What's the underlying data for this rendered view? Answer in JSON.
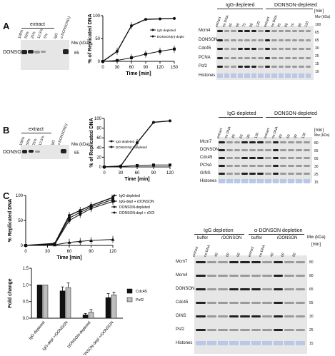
{
  "panels": {
    "A": {
      "letter": "A",
      "extract_label": "extract",
      "extract_lanes": [
        "100%",
        "50%",
        "25%",
        "12.5%",
        "5%"
      ],
      "ip_lanes": [
        "IgG",
        "α-DONSON(n)"
      ],
      "mw_label": "Mw (kDa)",
      "mw_marker": "65",
      "blot_label": "DONSON",
      "right_groups": [
        "IgG-depleted",
        "DONSON-depleted"
      ],
      "right_lanes": [
        "extract",
        "no DNA",
        "45",
        "60",
        "75",
        "90",
        "120"
      ],
      "right_lanes2": [
        "extract",
        "no DNA",
        "45",
        "60",
        "75",
        "90",
        "120"
      ],
      "time_unit": "[min]",
      "right_rows": [
        "Mcm4",
        "DONSON",
        "Cdc45",
        "PCNA",
        "Psf2",
        "Histones"
      ],
      "right_mw": [
        "Mw (kDa)",
        "100",
        "65",
        "65",
        "30",
        "25",
        "15",
        "10"
      ]
    },
    "B": {
      "letter": "B",
      "extract_label": "extract",
      "extract_lanes": [
        "100%",
        "50%",
        "25%",
        "12.5%"
      ],
      "ip_lanes": [
        "IgG",
        "α-DONSON(c)"
      ],
      "mw_label": "Mw (kDa)",
      "mw_marker": "65",
      "blot_label": "DONSON",
      "right_groups": [
        "IgG-depleted",
        "DONSON-depleted"
      ],
      "right_lanes": [
        "extract",
        "no DNA",
        "40",
        "60",
        "90",
        "120"
      ],
      "right_lanes2": [
        "extract",
        "no DNA",
        "40",
        "60",
        "90",
        "120"
      ],
      "time_unit": "[min]",
      "right_rows": [
        "Mcm7",
        "DONSON",
        "Cdc45",
        "PCNA",
        "GINS",
        "Histones"
      ],
      "right_mw": [
        "Mw (kDa)",
        "80",
        "65",
        "65",
        "30",
        "25",
        "15"
      ]
    },
    "C": {
      "letter": "C",
      "right_groups": [
        "IgG depletion",
        "α-DONSON depletion"
      ],
      "sub_groups": [
        "buffer",
        "rDONSON",
        "buffer",
        "rDONSON"
      ],
      "right_lanes": [
        "extract",
        "no DNA",
        "40",
        "60",
        "90",
        "extract",
        "no DNA",
        "40",
        "60",
        "90"
      ],
      "time_unit": "[min]",
      "mw_label": "Mw (kDa)",
      "right_rows": [
        "Mcm7",
        "Mcm4",
        "DONSON",
        "Cdc45",
        "GINS",
        "Psf2",
        "Histones"
      ],
      "right_mw": [
        "80",
        "80",
        "65",
        "55",
        "30",
        "25",
        "15"
      ]
    }
  },
  "chart_data": [
    {
      "type": "line",
      "panel": "A",
      "x": [
        0,
        30,
        60,
        90,
        120,
        150
      ],
      "series": [
        {
          "name": "IgG-depleted",
          "values": [
            0,
            22,
            78,
            92,
            93,
            94
          ]
        },
        {
          "name": "DONSON(n)-depleted",
          "values": [
            0,
            2,
            8,
            16,
            22,
            27
          ]
        }
      ],
      "xlabel": "Time [min]",
      "ylabel": "% of Replicated DNA",
      "xticks": [
        "0",
        "30",
        "60",
        "90",
        "120",
        "150"
      ],
      "yticks": [
        "0",
        "50",
        "100"
      ],
      "xlim": [
        0,
        150
      ],
      "ylim": [
        0,
        100
      ]
    },
    {
      "type": "line",
      "panel": "B",
      "x": [
        0,
        30,
        60,
        90,
        120
      ],
      "series": [
        {
          "name": "IgG-depleted",
          "values": [
            0,
            2,
            50,
            92,
            95
          ]
        },
        {
          "name": "DONSON(c)-depleted",
          "values": [
            0,
            1,
            3,
            4,
            4
          ]
        }
      ],
      "xlabel": "Time [min]",
      "ylabel": "% of Replicated DNA",
      "xticks": [
        "0",
        "30",
        "60",
        "90",
        "120"
      ],
      "yticks": [
        "0",
        "20",
        "40",
        "60",
        "80",
        "100"
      ],
      "xlim": [
        0,
        120
      ],
      "ylim": [
        0,
        100
      ]
    },
    {
      "type": "line",
      "panel": "C",
      "x": [
        0,
        40,
        60,
        75,
        90,
        120
      ],
      "series": [
        {
          "name": "IgG-depleted",
          "values": [
            0,
            4,
            60,
            70,
            80,
            96
          ]
        },
        {
          "name": "IgG-depl + rDONSON",
          "values": [
            0,
            3,
            55,
            66,
            77,
            92
          ]
        },
        {
          "name": "DONSON-depleted",
          "values": [
            0,
            1,
            6,
            8,
            10,
            12
          ]
        },
        {
          "name": "DONSON-depl + rDONSON",
          "values": [
            0,
            2,
            50,
            62,
            74,
            88
          ]
        }
      ],
      "xlabel": "Time [min]",
      "ylabel": "% Replicated DNA",
      "xticks": [
        "0",
        "30",
        "60",
        "90",
        "120"
      ],
      "yticks": [
        "0",
        "50",
        "100"
      ],
      "xlim": [
        0,
        120
      ],
      "ylim": [
        0,
        100
      ]
    },
    {
      "type": "bar",
      "panel": "C",
      "categories": [
        "IgG-depleted",
        "IgG-depl +rDONSON",
        "DONSON-depleted",
        "DONSON-depl +rDONSON"
      ],
      "series": [
        {
          "name": "Cdc45",
          "values": [
            1.0,
            0.82,
            0.1,
            0.62
          ],
          "errors": [
            0,
            0.12,
            0.04,
            0.12
          ]
        },
        {
          "name": "Psf2",
          "values": [
            1.0,
            0.92,
            0.18,
            0.7
          ],
          "errors": [
            0,
            0.14,
            0.08,
            0.08
          ]
        }
      ],
      "ylabel": "Fold change",
      "yticks": [
        "0.0",
        "0.5",
        "1.0",
        "1.5"
      ],
      "ylim": [
        0,
        1.5
      ],
      "legend": "right"
    }
  ]
}
